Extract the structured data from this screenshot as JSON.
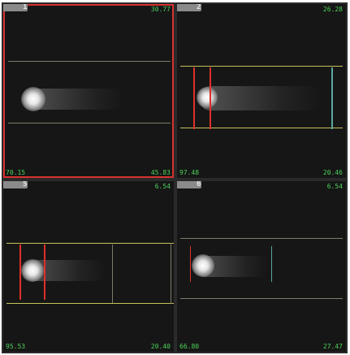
{
  "panels": [
    {
      "number": "1",
      "top_right": "30.77",
      "bottom_left": "70.15",
      "bottom_right": "45.83"
    },
    {
      "number": "2",
      "top_right": "26.28",
      "bottom_left": "97.48",
      "bottom_right": "20.46"
    },
    {
      "number": "5",
      "top_right": "6.54",
      "bottom_left": "95.53",
      "bottom_right": "20.40"
    },
    {
      "number": "6",
      "top_right": "6.54",
      "bottom_left": "66.80",
      "bottom_right": "27.47"
    }
  ],
  "selected_panel": "1",
  "colors": {
    "value_text": "#4cd35a",
    "selection": "#d8322f",
    "marker": "#e0302a",
    "guide": "#c8c25a"
  }
}
